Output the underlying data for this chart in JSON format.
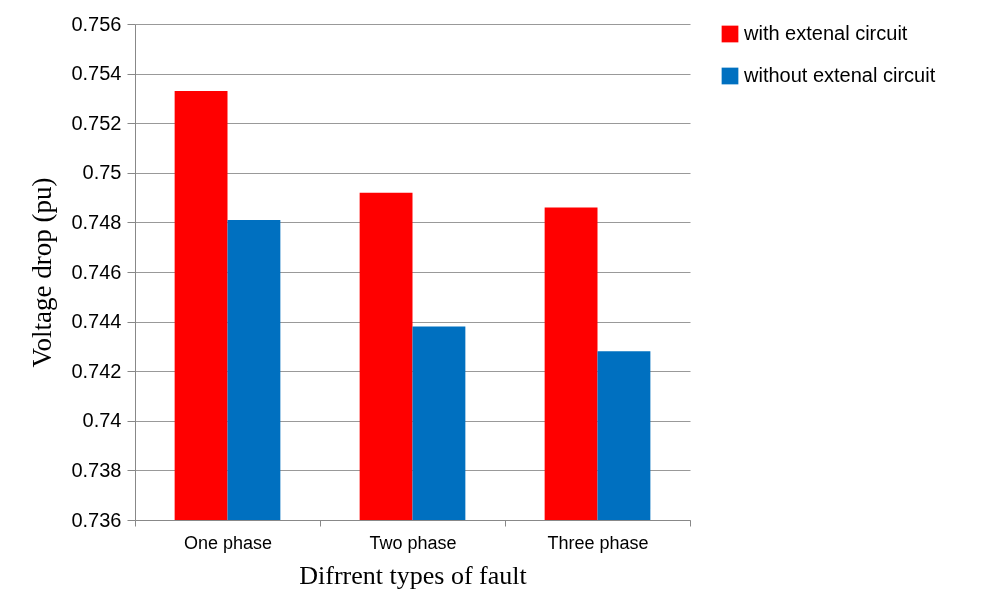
{
  "chart_data": {
    "type": "bar",
    "xlabel": "Difrrent types of fault",
    "ylabel": "Voltage drop  (pu)",
    "categories": [
      "One phase",
      "Two phase",
      "Three phase"
    ],
    "series": [
      {
        "name": "with extenal circuit",
        "color": "#ff0000",
        "values": [
          0.7533,
          0.7492,
          0.7486
        ]
      },
      {
        "name": "without extenal circuit",
        "color": "#0070c0",
        "values": [
          0.7481,
          0.7438,
          0.7428
        ]
      }
    ],
    "ylim": [
      0.736,
      0.756
    ],
    "yticks": [
      0.736,
      0.738,
      0.74,
      0.742,
      0.744,
      0.746,
      0.748,
      0.75,
      0.752,
      0.754,
      0.756
    ],
    "grid": "y",
    "legend": "top right"
  }
}
